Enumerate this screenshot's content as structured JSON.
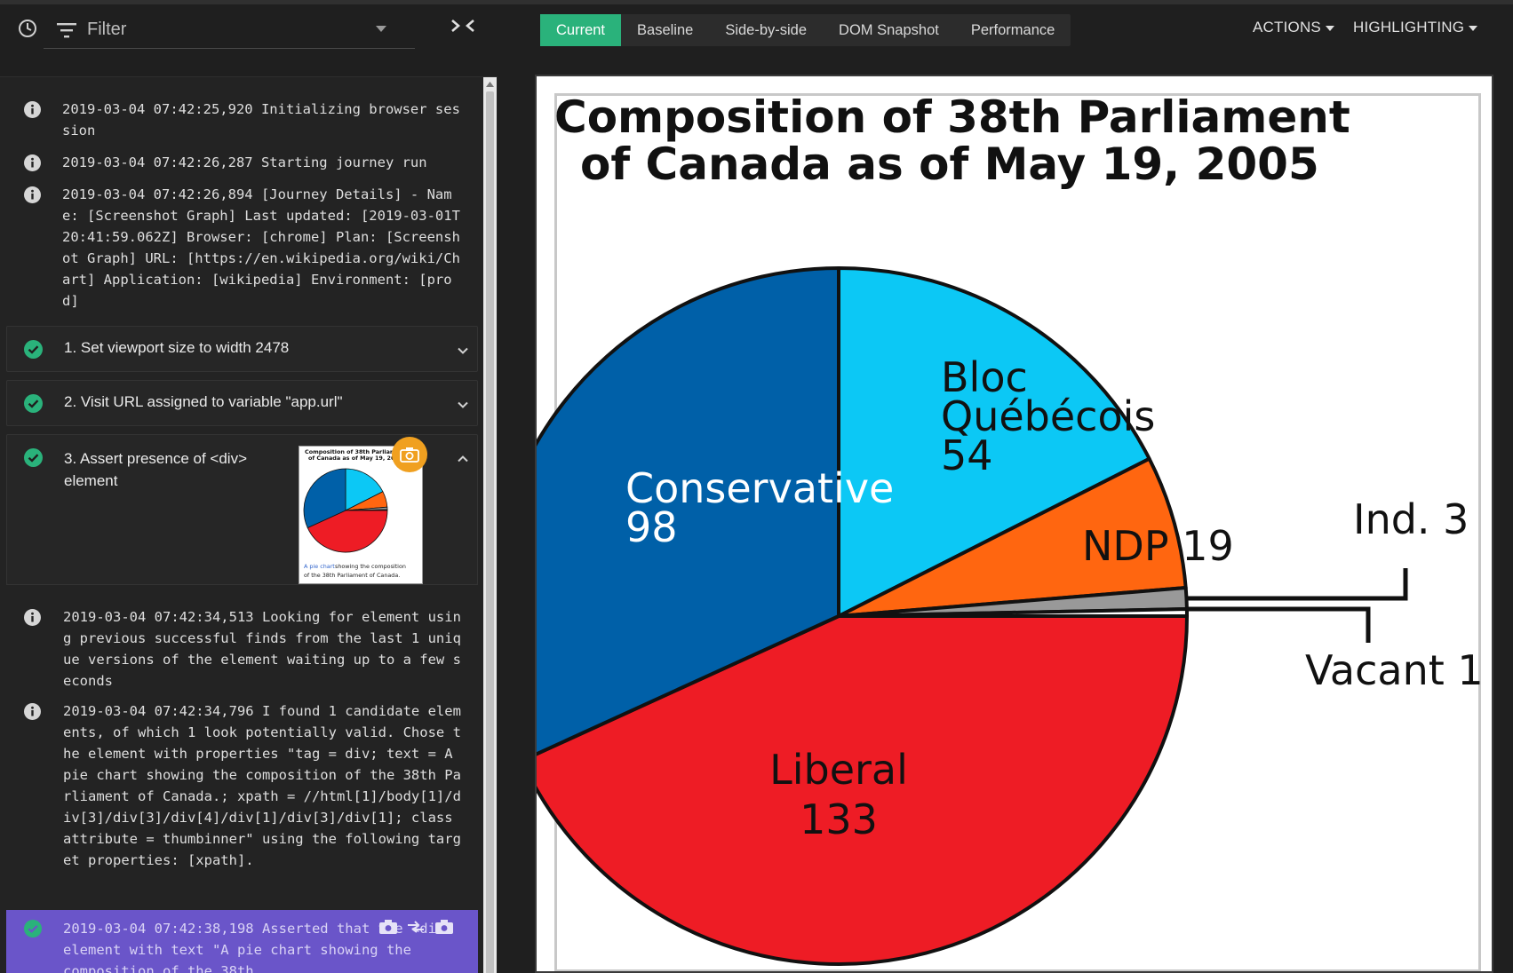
{
  "toolbar": {
    "filter_placeholder": "Filter",
    "tabs": [
      "Current",
      "Baseline",
      "Side-by-side",
      "DOM Snapshot",
      "Performance"
    ],
    "active_tab": "Current",
    "actions_label": "ACTIONS",
    "highlighting_label": "HIGHLIGHTING",
    "accent_color": "#2ab27b"
  },
  "log": {
    "entries": [
      "2019-03-04 07:42:25,920 Initializing browser session",
      "2019-03-04 07:42:26,287 Starting journey run",
      "2019-03-04 07:42:26,894 [Journey Details] - Name: [Screenshot Graph] Last updated: [2019-03-01T20:41:59.062Z] Browser: [chrome] Plan: [Screenshot Graph] URL: [https://en.wikipedia.org/wiki/Chart] Application: [wikipedia] Environment: [prod]"
    ],
    "steps": [
      "1. Set viewport size to width 2478",
      "2. Visit URL assigned to variable \"app.url\"",
      "3. Assert presence of <div> element"
    ],
    "step3_entries": [
      "2019-03-04 07:42:34,513 Looking for element using previous successful finds from the last 1 unique versions of the element waiting up to a few seconds",
      "2019-03-04 07:42:34,796 I found 1 candidate elements, of which 1 look potentially valid. Chose the element with properties \"tag = div; text = A pie chart showing the composition of the 38th Parliament of Canada.; xpath = //html[1]/body[1]/div[3]/div[3]/div[4]/div[1]/div[3]/div[1]; class attribute = thumbinner\" using the following target properties: [xpath]."
    ],
    "highlighted_entry": "2019-03-04 07:42:38,198 Asserted that the <div> element with text \"A pie chart showing the composition of the 38th",
    "highlight_color": "#6a55c9"
  },
  "thumbnail": {
    "title_line1": "Composition of 38th Parliament",
    "title_line2": "of Canada as of May 19, 2005",
    "caption_link": "A pie chart",
    "caption_rest": " showing the composition",
    "caption_line2": "of the 38th Parliament of Canada."
  },
  "chart_data": {
    "type": "pie",
    "title_line1": "Composition of 38th Parliament",
    "title_line2": "of Canada as of May 19, 2005",
    "slices": [
      {
        "name": "Bloc Québécois",
        "value": 54,
        "color": "#0cc8f5",
        "label_lines": [
          "Bloc",
          "Québécois",
          "54"
        ]
      },
      {
        "name": "NDP",
        "value": 19,
        "color": "#ff6610",
        "label_lines": [
          "NDP 19"
        ]
      },
      {
        "name": "Ind.",
        "value": 3,
        "color": "#999999",
        "label_lines": [
          "Ind. 3"
        ]
      },
      {
        "name": "Vacant",
        "value": 1,
        "color": "#ffffff",
        "label_lines": [
          "Vacant 1"
        ]
      },
      {
        "name": "Liberal",
        "value": 133,
        "color": "#ee1c25",
        "label_lines": [
          "Liberal",
          "133"
        ]
      },
      {
        "name": "Conservative",
        "value": 98,
        "color": "#0060a8",
        "label_lines": [
          "Conservative",
          "98"
        ]
      }
    ]
  }
}
